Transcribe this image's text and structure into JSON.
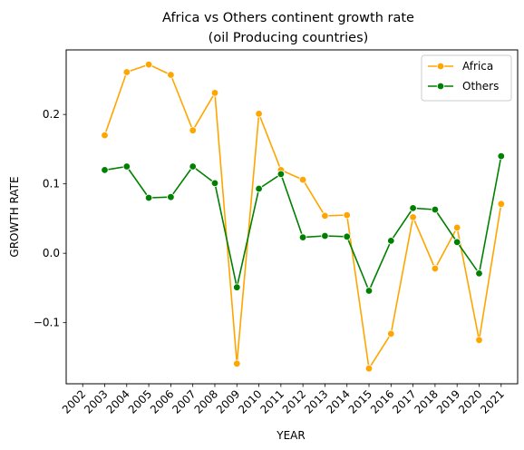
{
  "chart_data": {
    "type": "line",
    "title_line1": "Africa vs Others continent growth rate",
    "title_line2": "(oil Producing countries)",
    "xlabel": "YEAR",
    "ylabel": "GROWTH RATE",
    "x_ticks": [
      "2002",
      "2003",
      "2004",
      "2005",
      "2006",
      "2007",
      "2008",
      "2009",
      "2010",
      "2011",
      "2012",
      "2013",
      "2014",
      "2015",
      "2016",
      "2017",
      "2018",
      "2019",
      "2020",
      "2021"
    ],
    "xlim": [
      2001.25,
      2021.75
    ],
    "y_ticks": [
      -0.1,
      0.0,
      0.1,
      0.2
    ],
    "y_tick_labels": [
      "−0.1",
      "0.0",
      "0.1",
      "0.2"
    ],
    "ylim": [
      -0.188,
      0.293
    ],
    "grid": false,
    "legend_position": "top-right",
    "x": [
      2003,
      2004,
      2005,
      2006,
      2007,
      2008,
      2009,
      2010,
      2011,
      2012,
      2013,
      2014,
      2015,
      2016,
      2017,
      2018,
      2019,
      2020,
      2021
    ],
    "series": [
      {
        "name": "Africa",
        "color": "#FFA500",
        "marker": "circle",
        "values": [
          0.17,
          0.261,
          0.272,
          0.257,
          0.177,
          0.231,
          -0.159,
          0.201,
          0.12,
          0.106,
          0.054,
          0.055,
          -0.166,
          -0.116,
          0.052,
          -0.022,
          0.037,
          -0.125,
          0.071
        ]
      },
      {
        "name": "Others",
        "color": "#008000",
        "marker": "circle",
        "values": [
          0.12,
          0.125,
          0.08,
          0.081,
          0.125,
          0.101,
          -0.049,
          0.093,
          0.114,
          0.023,
          0.025,
          0.024,
          -0.054,
          0.018,
          0.065,
          0.063,
          0.016,
          -0.029,
          0.14
        ]
      }
    ]
  }
}
